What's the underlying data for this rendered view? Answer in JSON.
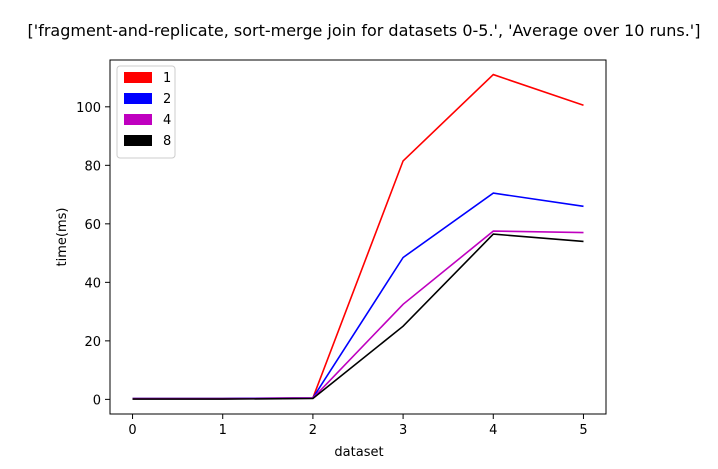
{
  "chart_data": {
    "type": "line",
    "title": "['fragment-and-replicate, sort-merge join for datasets 0-5.', 'Average over 10 runs.']",
    "xlabel": "dataset",
    "ylabel": "time(ms)",
    "x": [
      0,
      1,
      2,
      3,
      4,
      5
    ],
    "xticks": [
      "0",
      "1",
      "2",
      "3",
      "4",
      "5"
    ],
    "yticks": [
      "0",
      "20",
      "40",
      "60",
      "80",
      "100"
    ],
    "xlim": [
      -0.25,
      5.25
    ],
    "ylim": [
      -5,
      116
    ],
    "grid": false,
    "legend_position": "top-left",
    "series": [
      {
        "name": "1",
        "color": "#ff0000",
        "values": [
          0.3,
          0.3,
          0.5,
          81.5,
          111.0,
          100.5
        ]
      },
      {
        "name": "2",
        "color": "#0000ff",
        "values": [
          0.3,
          0.3,
          0.5,
          48.5,
          70.5,
          66.0
        ]
      },
      {
        "name": "4",
        "color": "#bf00bf",
        "values": [
          0.2,
          0.2,
          0.4,
          32.5,
          57.5,
          57.0
        ]
      },
      {
        "name": "8",
        "color": "#000000",
        "values": [
          0.1,
          0.1,
          0.3,
          25.0,
          56.5,
          54.0
        ]
      }
    ]
  }
}
